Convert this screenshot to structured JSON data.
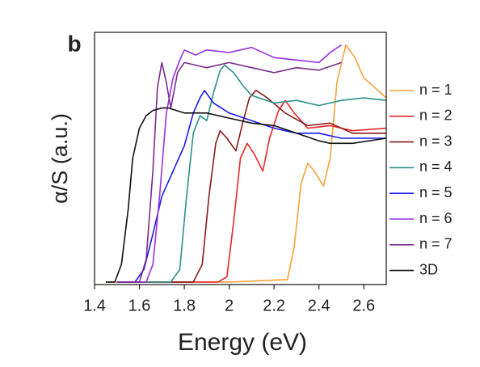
{
  "chart_data": {
    "type": "line",
    "panel_label": "b",
    "x_label": "Energy (eV)",
    "y_label": "α/S (a.u.)",
    "xlim": [
      1.4,
      2.7
    ],
    "ylim": [
      0,
      1
    ],
    "xticks": [
      1.4,
      1.6,
      1.8,
      2.0,
      2.2,
      2.4,
      2.6
    ],
    "legend": "right",
    "series": [
      {
        "name": "n = 1",
        "color": "#f7a13a",
        "x": [
          1.45,
          2.0,
          2.26,
          2.29,
          2.32,
          2.35,
          2.38,
          2.42,
          2.45,
          2.48,
          2.52,
          2.56,
          2.6,
          2.65,
          2.7
        ],
        "values": [
          0.01,
          0.01,
          0.02,
          0.15,
          0.4,
          0.48,
          0.45,
          0.39,
          0.5,
          0.8,
          0.95,
          0.9,
          0.82,
          0.78,
          0.74
        ]
      },
      {
        "name": "n = 2",
        "color": "#e8262a",
        "x": [
          1.5,
          1.95,
          1.99,
          2.02,
          2.05,
          2.08,
          2.11,
          2.15,
          2.18,
          2.22,
          2.25,
          2.29,
          2.35,
          2.45,
          2.55,
          2.7
        ],
        "values": [
          0.01,
          0.01,
          0.03,
          0.25,
          0.5,
          0.56,
          0.52,
          0.45,
          0.58,
          0.69,
          0.73,
          0.68,
          0.62,
          0.63,
          0.61,
          0.62
        ]
      },
      {
        "name": "n = 3",
        "color": "#8b1a1a",
        "x": [
          1.5,
          1.84,
          1.88,
          1.91,
          1.94,
          1.96,
          1.99,
          2.03,
          2.06,
          2.09,
          2.12,
          2.17,
          2.25,
          2.35,
          2.45,
          2.55,
          2.7
        ],
        "values": [
          0.01,
          0.01,
          0.08,
          0.35,
          0.56,
          0.61,
          0.58,
          0.53,
          0.64,
          0.74,
          0.77,
          0.74,
          0.68,
          0.63,
          0.64,
          0.6,
          0.6
        ]
      },
      {
        "name": "n = 4",
        "color": "#2a9187",
        "x": [
          1.5,
          1.74,
          1.78,
          1.81,
          1.84,
          1.87,
          1.9,
          1.93,
          1.96,
          1.98,
          2.02,
          2.06,
          2.1,
          2.2,
          2.3,
          2.4,
          2.5,
          2.6,
          2.7
        ],
        "values": [
          0.01,
          0.01,
          0.06,
          0.35,
          0.6,
          0.67,
          0.65,
          0.76,
          0.85,
          0.87,
          0.84,
          0.79,
          0.75,
          0.72,
          0.73,
          0.71,
          0.73,
          0.74,
          0.73
        ]
      },
      {
        "name": "n = 5",
        "color": "#1a1aee",
        "x": [
          1.5,
          1.58,
          1.62,
          1.66,
          1.7,
          1.75,
          1.8,
          1.84,
          1.87,
          1.89,
          1.93,
          2.0,
          2.1,
          2.2,
          2.3,
          2.4,
          2.5,
          2.6,
          2.7
        ],
        "values": [
          0.01,
          0.01,
          0.06,
          0.2,
          0.35,
          0.45,
          0.55,
          0.68,
          0.74,
          0.77,
          0.72,
          0.68,
          0.65,
          0.62,
          0.6,
          0.6,
          0.58,
          0.58,
          0.58
        ]
      },
      {
        "name": "n = 6",
        "color": "#9b30e0",
        "x": [
          1.5,
          1.63,
          1.66,
          1.69,
          1.72,
          1.75,
          1.78,
          1.8,
          1.85,
          1.9,
          2.0,
          2.1,
          2.2,
          2.3,
          2.4,
          2.45,
          2.5
        ],
        "values": [
          0.01,
          0.01,
          0.08,
          0.35,
          0.68,
          0.82,
          0.89,
          0.93,
          0.91,
          0.93,
          0.92,
          0.94,
          0.9,
          0.89,
          0.88,
          0.92,
          0.95
        ]
      },
      {
        "name": "n = 7",
        "color": "#7a2a8c",
        "x": [
          1.5,
          1.6,
          1.63,
          1.66,
          1.68,
          1.7,
          1.72,
          1.74,
          1.77,
          1.8,
          1.9,
          2.0,
          2.1,
          2.2,
          2.3,
          2.4,
          2.5
        ],
        "values": [
          0.01,
          0.01,
          0.1,
          0.45,
          0.78,
          0.88,
          0.8,
          0.7,
          0.84,
          0.88,
          0.86,
          0.88,
          0.86,
          0.84,
          0.86,
          0.85,
          0.88
        ]
      },
      {
        "name": "3D",
        "color": "#111111",
        "x": [
          1.45,
          1.49,
          1.52,
          1.55,
          1.57,
          1.6,
          1.63,
          1.66,
          1.7,
          1.73,
          1.8,
          1.9,
          2.0,
          2.1,
          2.2,
          2.3,
          2.4,
          2.45,
          2.55,
          2.7
        ],
        "values": [
          0.01,
          0.01,
          0.08,
          0.3,
          0.5,
          0.62,
          0.67,
          0.69,
          0.7,
          0.7,
          0.68,
          0.68,
          0.66,
          0.64,
          0.63,
          0.6,
          0.57,
          0.56,
          0.56,
          0.58
        ]
      }
    ]
  }
}
